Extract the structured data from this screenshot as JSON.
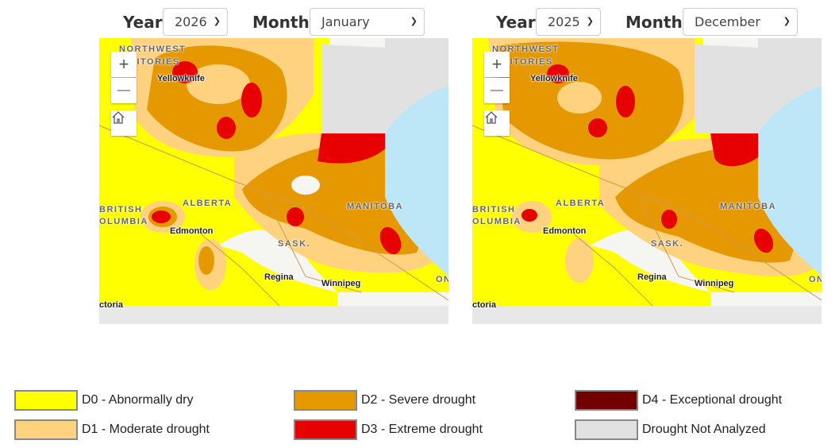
{
  "panels": [
    {
      "year_label": "Year",
      "year": "2026",
      "month_label": "Month",
      "month": "January"
    },
    {
      "year_label": "Year",
      "year": "2025",
      "month_label": "Month",
      "month": "December"
    }
  ],
  "map": {
    "zoom_in": "+",
    "zoom_out": "—",
    "places": {
      "nwt1": "NORTHWEST",
      "nwt2": "RITORIES",
      "yellowknife": "Yellowknife",
      "alberta": "ALBERTA",
      "bc1": "BRITISH",
      "bc2": "OLUMBIA",
      "edmonton": "Edmonton",
      "sask": "SASK.",
      "manitoba": "MANITOBA",
      "regina": "Regina",
      "winnipeg": "Winnipeg",
      "victoria": "ctoria",
      "on": "ON"
    }
  },
  "legend": [
    {
      "label": "D0 - Abnormally dry",
      "color": "#ffff00"
    },
    {
      "label": "D1 - Moderate drought",
      "color": "#ffd27f"
    },
    {
      "label": "D2 - Severe drought",
      "color": "#e69800"
    },
    {
      "label": "D3 - Extreme drought",
      "color": "#e60000"
    },
    {
      "label": "D4 - Exceptional drought",
      "color": "#730000"
    },
    {
      "label": "Drought Not Analyzed",
      "color": "#e1e1e1"
    }
  ]
}
